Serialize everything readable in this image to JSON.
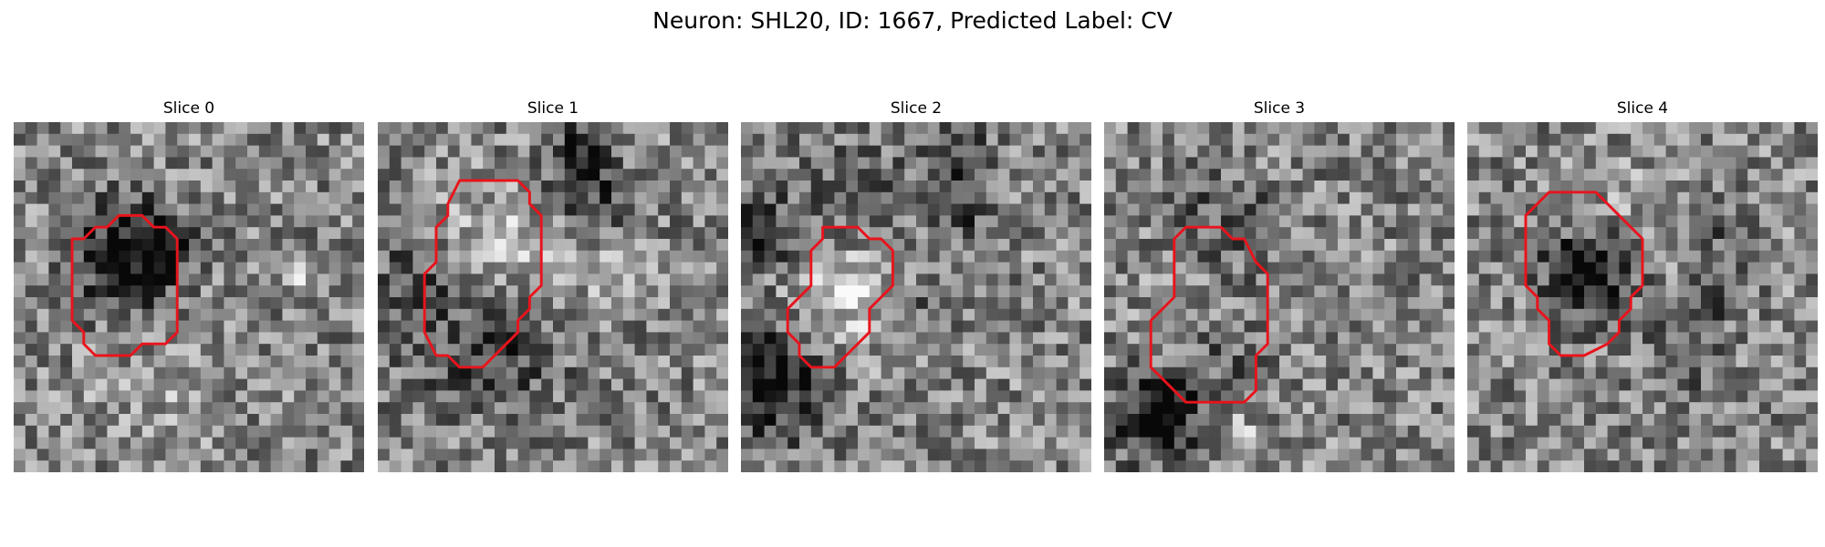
{
  "figure": {
    "title": "Neuron: SHL20, ID: 1667, Predicted Label: CV",
    "contour_color": "#e8141c"
  },
  "panels": [
    {
      "title": "Slice 0",
      "contour": [
        [
          9,
          8
        ],
        [
          11,
          8
        ],
        [
          12,
          9
        ],
        [
          13,
          9
        ],
        [
          14,
          10
        ],
        [
          14,
          18
        ],
        [
          13,
          19
        ],
        [
          11,
          19
        ],
        [
          10,
          20
        ],
        [
          7,
          20
        ],
        [
          6,
          19
        ],
        [
          6,
          18
        ],
        [
          5,
          17
        ],
        [
          5,
          10
        ],
        [
          6,
          10
        ],
        [
          7,
          9
        ],
        [
          8,
          9
        ]
      ],
      "dark_spots": [
        [
          9,
          11,
          3.2,
          1.0
        ],
        [
          12,
          10,
          2.0,
          0.6
        ]
      ],
      "bright_spots": [
        [
          24,
          13,
          0.7,
          1.4
        ],
        [
          12,
          24,
          4.0,
          0.3
        ]
      ]
    },
    {
      "title": "Slice 1",
      "contour": [
        [
          7,
          5
        ],
        [
          12,
          5
        ],
        [
          13,
          6
        ],
        [
          13,
          7
        ],
        [
          14,
          8
        ],
        [
          14,
          14
        ],
        [
          13,
          15
        ],
        [
          13,
          16
        ],
        [
          12,
          17
        ],
        [
          12,
          18
        ],
        [
          11,
          19
        ],
        [
          10,
          20
        ],
        [
          9,
          21
        ],
        [
          7,
          21
        ],
        [
          6,
          20
        ],
        [
          5,
          20
        ],
        [
          4,
          18
        ],
        [
          4,
          13
        ],
        [
          5,
          12
        ],
        [
          5,
          9
        ],
        [
          6,
          8
        ],
        [
          6,
          7
        ]
      ],
      "dark_spots": [
        [
          9,
          18,
          4.5,
          0.7
        ],
        [
          3,
          12,
          3.0,
          0.5
        ],
        [
          18,
          5,
          3.0,
          0.7
        ],
        [
          17,
          2,
          1.5,
          0.8
        ]
      ],
      "bright_spots": [
        [
          9,
          11,
          4.0,
          0.8
        ],
        [
          20,
          2,
          2.5,
          0.5
        ],
        [
          17,
          12,
          3.0,
          0.4
        ]
      ]
    },
    {
      "title": "Slice 2",
      "contour": [
        [
          7,
          9
        ],
        [
          10,
          9
        ],
        [
          11,
          10
        ],
        [
          12,
          10
        ],
        [
          13,
          11
        ],
        [
          13,
          14
        ],
        [
          12,
          15
        ],
        [
          11,
          16
        ],
        [
          11,
          18
        ],
        [
          10,
          19
        ],
        [
          9,
          20
        ],
        [
          8,
          21
        ],
        [
          6,
          21
        ],
        [
          5,
          20
        ],
        [
          5,
          19
        ],
        [
          4,
          18
        ],
        [
          4,
          16
        ],
        [
          5,
          15
        ],
        [
          6,
          14
        ],
        [
          6,
          11
        ],
        [
          7,
          10
        ]
      ],
      "dark_spots": [
        [
          2,
          22,
          3.5,
          1.0
        ],
        [
          1,
          9,
          2.5,
          0.7
        ],
        [
          18,
          7,
          2.0,
          0.6
        ],
        [
          16,
          15,
          2.0,
          0.5
        ],
        [
          9,
          6,
          3.5,
          0.4
        ],
        [
          18,
          2,
          2.0,
          0.6
        ]
      ],
      "bright_spots": [
        [
          9,
          14,
          4.0,
          0.7
        ],
        [
          9,
          14,
          0.7,
          1.4
        ]
      ]
    },
    {
      "title": "Slice 3",
      "contour": [
        [
          7,
          9
        ],
        [
          10,
          9
        ],
        [
          11,
          10
        ],
        [
          12,
          10
        ],
        [
          13,
          12
        ],
        [
          14,
          13
        ],
        [
          14,
          19
        ],
        [
          13,
          20
        ],
        [
          13,
          23
        ],
        [
          12,
          24
        ],
        [
          7,
          24
        ],
        [
          5,
          22
        ],
        [
          4,
          21
        ],
        [
          4,
          17
        ],
        [
          5,
          16
        ],
        [
          6,
          15
        ],
        [
          6,
          10
        ]
      ],
      "dark_spots": [
        [
          4,
          25,
          2.5,
          1.2
        ],
        [
          10,
          9,
          3.5,
          0.5
        ],
        [
          10,
          19,
          3.0,
          0.4
        ]
      ],
      "bright_spots": [
        [
          11,
          26,
          0.7,
          1.2
        ],
        [
          9,
          14,
          4.0,
          0.3
        ]
      ]
    },
    {
      "title": "Slice 4",
      "contour": [
        [
          9,
          6
        ],
        [
          11,
          6
        ],
        [
          12,
          7
        ],
        [
          15,
          10
        ],
        [
          15,
          14
        ],
        [
          14,
          15
        ],
        [
          14,
          16
        ],
        [
          13,
          17
        ],
        [
          13,
          18
        ],
        [
          12,
          19
        ],
        [
          10,
          20
        ],
        [
          8,
          20
        ],
        [
          7,
          19
        ],
        [
          7,
          17
        ],
        [
          6,
          16
        ],
        [
          6,
          15
        ],
        [
          5,
          14
        ],
        [
          5,
          8
        ],
        [
          6,
          7
        ],
        [
          7,
          6
        ]
      ],
      "dark_spots": [
        [
          10,
          13,
          2.5,
          0.9
        ],
        [
          9,
          11,
          2.0,
          0.6
        ],
        [
          20,
          8,
          1.5,
          0.6
        ],
        [
          21,
          14,
          1.5,
          0.6
        ],
        [
          18,
          20,
          2.5,
          0.4
        ]
      ],
      "bright_spots": [
        [
          9,
          9,
          1.5,
          0.4
        ],
        [
          15,
          7,
          3.0,
          0.3
        ]
      ]
    }
  ]
}
